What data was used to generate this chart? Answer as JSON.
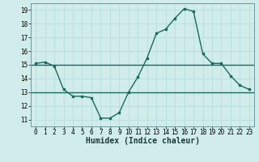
{
  "x": [
    0,
    1,
    2,
    3,
    4,
    5,
    6,
    7,
    8,
    9,
    10,
    11,
    12,
    13,
    14,
    15,
    16,
    17,
    18,
    19,
    20,
    21,
    22,
    23
  ],
  "y_main": [
    15.1,
    15.2,
    14.9,
    13.2,
    12.7,
    12.7,
    12.6,
    11.1,
    11.1,
    11.5,
    13.0,
    14.1,
    15.5,
    17.3,
    17.6,
    18.4,
    19.1,
    18.9,
    15.8,
    15.1,
    15.1,
    14.2,
    13.5,
    13.2
  ],
  "y_ref1": 15.0,
  "y_ref2": 13.0,
  "line_color": "#1a6b5a",
  "bg_color": "#d0eceb",
  "grid_color": "#b8dedd",
  "ylim": [
    10.5,
    19.5
  ],
  "xlim": [
    -0.5,
    23.5
  ],
  "yticks": [
    11,
    12,
    13,
    14,
    15,
    16,
    17,
    18,
    19
  ],
  "xticks": [
    0,
    1,
    2,
    3,
    4,
    5,
    6,
    7,
    8,
    9,
    10,
    11,
    12,
    13,
    14,
    15,
    16,
    17,
    18,
    19,
    20,
    21,
    22,
    23
  ],
  "xlabel": "Humidex (Indice chaleur)",
  "tick_fontsize": 5.5,
  "xlabel_fontsize": 7
}
